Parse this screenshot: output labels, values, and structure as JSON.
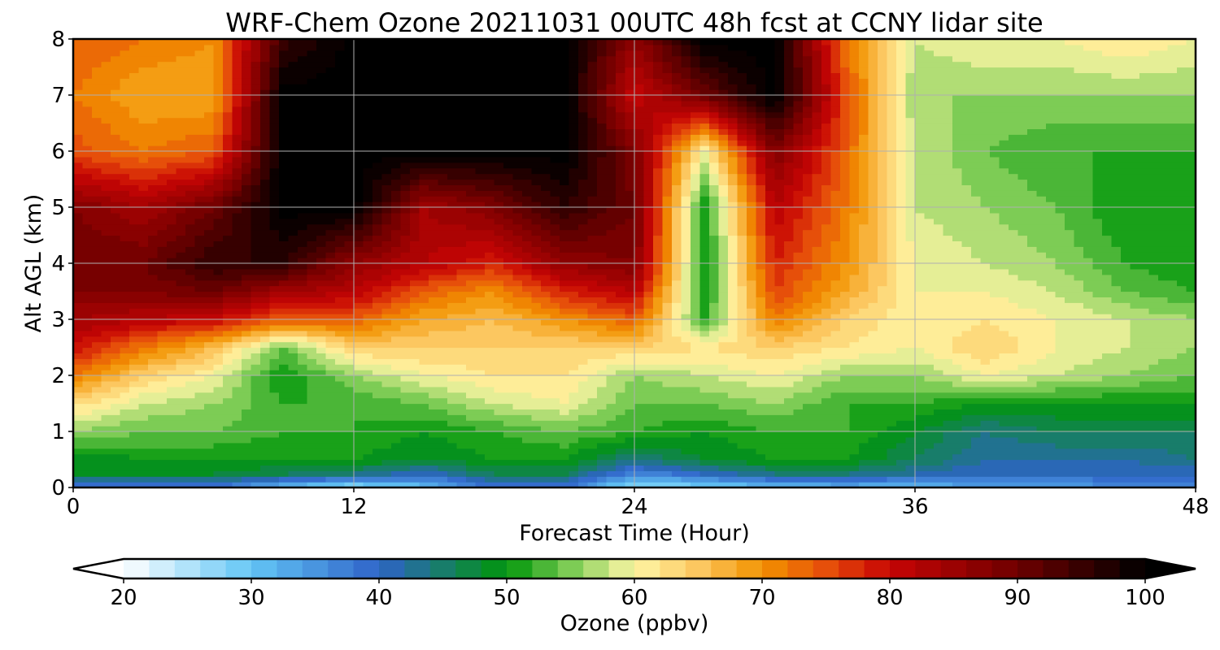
{
  "chart_data": {
    "type": "heatmap",
    "subtype": "filled-contour time-height cross-section",
    "title": "WRF-Chem Ozone  20211031 00UTC 48h fcst at CCNY lidar site",
    "xlabel": "Forecast Time (Hour)",
    "ylabel": "Alt AGL (km)",
    "xlim": [
      0,
      48
    ],
    "ylim": [
      0,
      8
    ],
    "xticks": [
      0,
      12,
      24,
      36,
      48
    ],
    "yticks": [
      0,
      1,
      2,
      3,
      4,
      5,
      6,
      7,
      8
    ],
    "grid": true,
    "x_hours": [
      0,
      3,
      6,
      9,
      12,
      15,
      18,
      21,
      24,
      27,
      30,
      33,
      36,
      39,
      42,
      45,
      48
    ],
    "z_km": [
      0,
      0.25,
      0.5,
      1,
      1.5,
      2,
      2.5,
      3,
      3.5,
      4,
      5,
      6,
      7,
      8
    ],
    "ozone_ppbv": [
      [
        36,
        48,
        48,
        56,
        63,
        72,
        80,
        84,
        88,
        90,
        88,
        75,
        72,
        74
      ],
      [
        36,
        48,
        50,
        54,
        58,
        64,
        72,
        82,
        88,
        90,
        84,
        72,
        68,
        72
      ],
      [
        38,
        48,
        50,
        54,
        56,
        60,
        66,
        80,
        90,
        96,
        90,
        74,
        68,
        70
      ],
      [
        30,
        46,
        50,
        52,
        52,
        50,
        54,
        74,
        84,
        96,
        101,
        101,
        101,
        95
      ],
      [
        26,
        44,
        50,
        52,
        52,
        56,
        64,
        74,
        82,
        86,
        101,
        101,
        101,
        101
      ],
      [
        30,
        40,
        48,
        50,
        54,
        60,
        64,
        68,
        74,
        82,
        84,
        101,
        101,
        101
      ],
      [
        38,
        46,
        50,
        52,
        58,
        62,
        64,
        66,
        70,
        78,
        88,
        101,
        101,
        101
      ],
      [
        38,
        46,
        50,
        54,
        60,
        62,
        64,
        70,
        78,
        86,
        96,
        101,
        101,
        101
      ],
      [
        26,
        36,
        44,
        52,
        54,
        56,
        64,
        74,
        82,
        88,
        90,
        88,
        80,
        86
      ],
      [
        28,
        40,
        48,
        50,
        54,
        58,
        62,
        52,
        50,
        50,
        50,
        60,
        90,
        101
      ],
      [
        30,
        44,
        50,
        52,
        56,
        60,
        64,
        72,
        76,
        78,
        82,
        88,
        101,
        101
      ],
      [
        32,
        44,
        50,
        52,
        52,
        56,
        62,
        64,
        68,
        70,
        72,
        74,
        76,
        72
      ],
      [
        30,
        42,
        46,
        48,
        52,
        56,
        60,
        60,
        60,
        60,
        58,
        58,
        56,
        58
      ],
      [
        34,
        40,
        42,
        44,
        50,
        60,
        64,
        62,
        60,
        58,
        56,
        54,
        56,
        60
      ],
      [
        34,
        40,
        42,
        46,
        50,
        58,
        60,
        60,
        58,
        56,
        54,
        52,
        56,
        60
      ],
      [
        36,
        40,
        42,
        46,
        50,
        56,
        58,
        58,
        54,
        52,
        50,
        52,
        56,
        62
      ],
      [
        36,
        40,
        44,
        46,
        50,
        54,
        56,
        56,
        52,
        50,
        50,
        52,
        56,
        60
      ]
    ],
    "colorbar": {
      "label": "Ozone  (ppbv)",
      "min": 20,
      "max": 100,
      "ticks": [
        20,
        30,
        40,
        50,
        60,
        70,
        80,
        90,
        100
      ],
      "extend": "both",
      "stops": [
        {
          "v": 20,
          "c": "#ffffff"
        },
        {
          "v": 30,
          "c": "#63c6f5"
        },
        {
          "v": 40,
          "c": "#2f63c9"
        },
        {
          "v": 50,
          "c": "#00960a"
        },
        {
          "v": 55,
          "c": "#7dcc55"
        },
        {
          "v": 60,
          "c": "#fff7a6"
        },
        {
          "v": 65,
          "c": "#fcc760"
        },
        {
          "v": 70,
          "c": "#f29300"
        },
        {
          "v": 75,
          "c": "#e64f0a"
        },
        {
          "v": 80,
          "c": "#c70404"
        },
        {
          "v": 90,
          "c": "#6e0000"
        },
        {
          "v": 100,
          "c": "#000000"
        }
      ]
    }
  }
}
